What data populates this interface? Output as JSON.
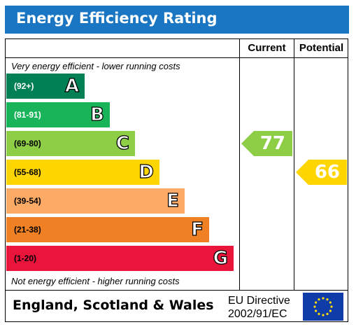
{
  "header": {
    "title": "Energy Efficiency Rating"
  },
  "columns": {
    "current": "Current",
    "potential": "Potential"
  },
  "notes": {
    "top": "Very energy efficient - lower running costs",
    "bottom": "Not energy efficient - higher running costs"
  },
  "footer": {
    "region": "England, Scotland & Wales",
    "directive_line1": "EU Directive",
    "directive_line2": "2002/91/EC"
  },
  "chart_data": {
    "type": "bar",
    "title": "Energy Efficiency Rating",
    "bands": [
      {
        "letter": "A",
        "range": "(92+)",
        "min": 92,
        "max": 100,
        "color": "#008054"
      },
      {
        "letter": "B",
        "range": "(81-91)",
        "min": 81,
        "max": 91,
        "color": "#19b459"
      },
      {
        "letter": "C",
        "range": "(69-80)",
        "min": 69,
        "max": 80,
        "color": "#8dce46"
      },
      {
        "letter": "D",
        "range": "(55-68)",
        "min": 55,
        "max": 68,
        "color": "#ffd500"
      },
      {
        "letter": "E",
        "range": "(39-54)",
        "min": 39,
        "max": 54,
        "color": "#fcaa65"
      },
      {
        "letter": "F",
        "range": "(21-38)",
        "min": 21,
        "max": 38,
        "color": "#ef8023"
      },
      {
        "letter": "G",
        "range": "(1-20)",
        "min": 1,
        "max": 20,
        "color": "#e9153b"
      }
    ],
    "current": {
      "label": "Current",
      "value": 77,
      "band": "C",
      "color": "#8dce46"
    },
    "potential": {
      "label": "Potential",
      "value": 66,
      "band": "D",
      "color": "#ffd500"
    }
  }
}
